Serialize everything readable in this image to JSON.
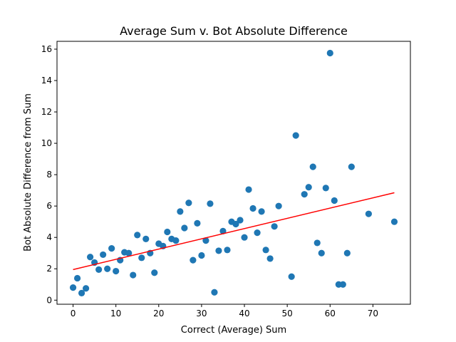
{
  "chart_data": {
    "type": "scatter",
    "title": "Average Sum v. Bot Absolute Difference",
    "xlabel": "Correct (Average) Sum",
    "ylabel": "Bot Absolute Difference from Sum",
    "xlim": [
      -3.75,
      78.75
    ],
    "ylim": [
      -0.26,
      16.5
    ],
    "xticks": [
      0,
      10,
      20,
      30,
      40,
      50,
      60,
      70
    ],
    "yticks": [
      0,
      2,
      4,
      6,
      8,
      10,
      12,
      14,
      16
    ],
    "grid": false,
    "legend": "none",
    "colors": {
      "points": "#1f77b4",
      "fit_line": "#ff0000",
      "axes": "#000000"
    },
    "points": {
      "x": [
        0,
        1,
        2,
        3,
        4,
        5,
        6,
        7,
        8,
        9,
        10,
        11,
        12,
        13,
        14,
        15,
        16,
        17,
        18,
        19,
        20,
        21,
        22,
        23,
        24,
        25,
        26,
        27,
        28,
        29,
        30,
        31,
        32,
        33,
        34,
        35,
        36,
        37,
        38,
        39,
        40,
        41,
        42,
        43,
        44,
        45,
        46,
        47,
        48,
        51,
        52,
        54,
        55,
        56,
        57,
        58,
        59,
        60,
        61,
        62,
        63,
        64,
        65,
        69,
        75
      ],
      "y": [
        0.8,
        1.4,
        0.45,
        0.75,
        2.75,
        2.4,
        1.95,
        2.9,
        2.0,
        3.3,
        1.85,
        2.55,
        3.05,
        3.0,
        1.6,
        4.15,
        2.7,
        3.9,
        3.0,
        1.75,
        3.6,
        3.45,
        4.35,
        3.9,
        3.8,
        5.65,
        4.6,
        6.2,
        2.55,
        4.9,
        2.85,
        3.8,
        6.15,
        0.5,
        3.15,
        4.4,
        3.2,
        5.0,
        4.85,
        5.1,
        4.0,
        7.05,
        5.85,
        4.3,
        5.65,
        3.2,
        2.65,
        4.7,
        6.0,
        1.5,
        10.5,
        6.75,
        7.2,
        8.5,
        3.65,
        3.0,
        7.15,
        15.75,
        6.35,
        1.0,
        1.0,
        3.0,
        8.5,
        5.5,
        5.0
      ]
    },
    "fit_line": {
      "x": [
        0,
        75
      ],
      "y": [
        1.95,
        6.85
      ]
    }
  }
}
